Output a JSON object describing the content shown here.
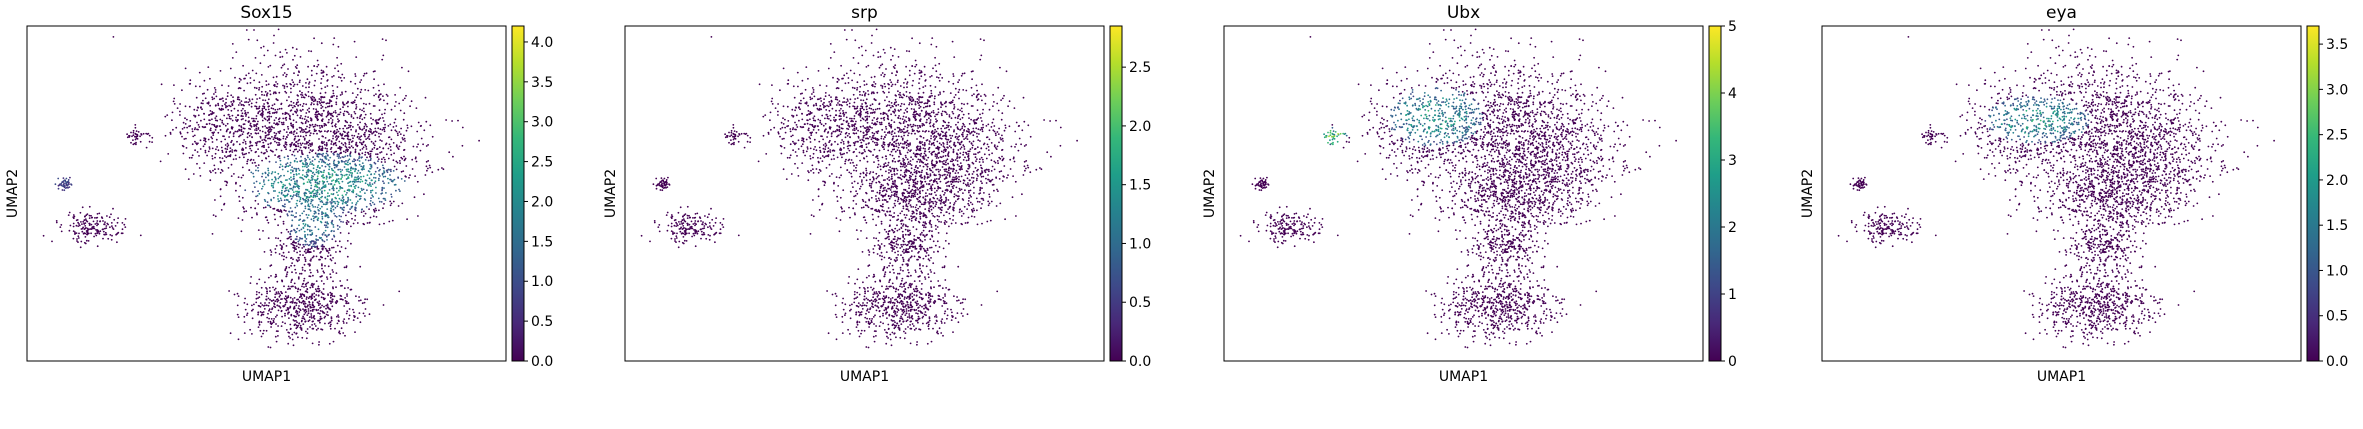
{
  "colormap": "viridis",
  "point_color_zero": "#440154",
  "chart_data": [
    {
      "type": "scatter",
      "title": "Sox15",
      "xlabel": "UMAP1",
      "ylabel": "UMAP2",
      "colorbar": {
        "min": 0.0,
        "max": 4.2,
        "ticks": [
          "0.0",
          "0.5",
          "1.0",
          "1.5",
          "2.0",
          "2.5",
          "3.0",
          "3.5",
          "4.0"
        ]
      },
      "hotspots": [
        {
          "region": "central-right band",
          "value_range": [
            1.5,
            2.5
          ]
        },
        {
          "region": "small left cluster",
          "value_range": [
            0.5,
            1.5
          ]
        }
      ]
    },
    {
      "type": "scatter",
      "title": "srp",
      "xlabel": "UMAP1",
      "ylabel": "UMAP2",
      "colorbar": {
        "min": 0.0,
        "max": 2.85,
        "ticks": [
          "0.0",
          "0.5",
          "1.0",
          "1.5",
          "2.0",
          "2.5"
        ]
      },
      "hotspots": []
    },
    {
      "type": "scatter",
      "title": "Ubx",
      "xlabel": "UMAP1",
      "ylabel": "UMAP2",
      "colorbar": {
        "min": 0,
        "max": 5,
        "ticks": [
          "0",
          "1",
          "2",
          "3",
          "4",
          "5"
        ]
      },
      "hotspots": [
        {
          "region": "upper-left of main cluster",
          "value_range": [
            2,
            3.5
          ]
        },
        {
          "region": "small isolated cluster",
          "value_range": [
            3,
            4
          ]
        }
      ]
    },
    {
      "type": "scatter",
      "title": "eya",
      "xlabel": "UMAP1",
      "ylabel": "UMAP2",
      "colorbar": {
        "min": 0.0,
        "max": 3.7,
        "ticks": [
          "0.0",
          "0.5",
          "1.0",
          "1.5",
          "2.0",
          "2.5",
          "3.0",
          "3.5"
        ]
      },
      "hotspots": [
        {
          "region": "upper-left of main cluster",
          "value_range": [
            1.5,
            2.5
          ]
        }
      ]
    }
  ]
}
